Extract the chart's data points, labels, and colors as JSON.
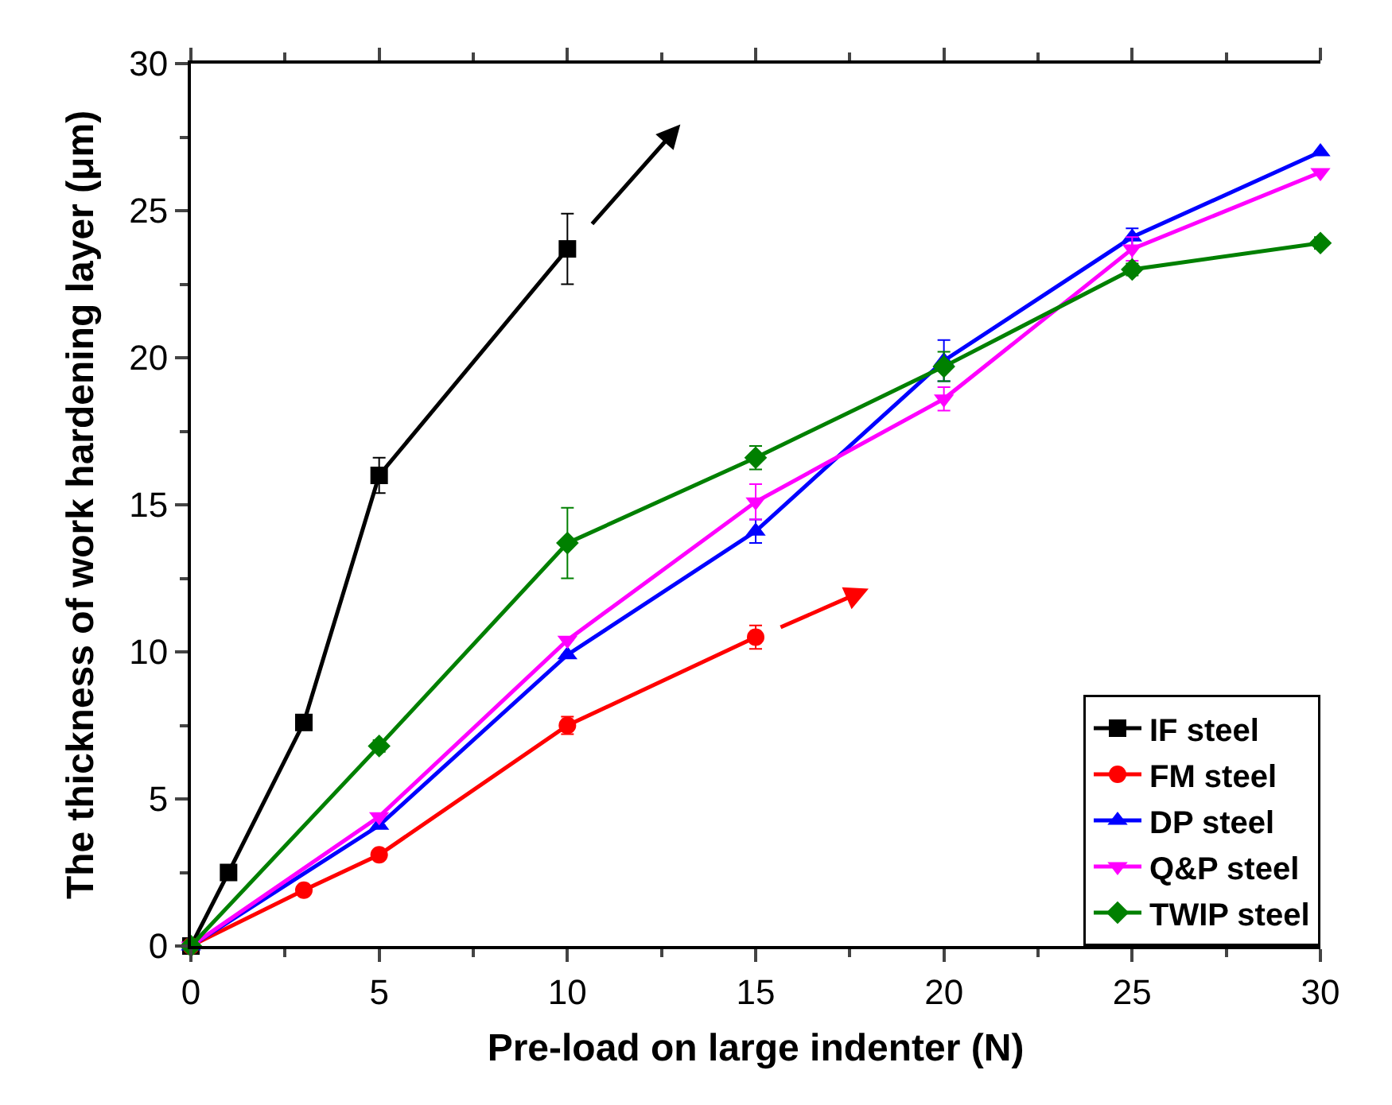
{
  "chart_data": {
    "type": "line",
    "xlabel": "Pre-load on large indenter (N)",
    "ylabel": "The thickness of work hardening layer (μm)",
    "xlim": [
      0,
      30
    ],
    "xticks": [
      0,
      5,
      10,
      15,
      20,
      25,
      30
    ],
    "ylim": [
      0,
      30
    ],
    "yticks": [
      0,
      5,
      10,
      15,
      20,
      25,
      30
    ],
    "legend": "bottom right",
    "line_style": "solid",
    "series": [
      {
        "name": "IF steel",
        "color": "#000000",
        "marker": "square",
        "x": [
          0,
          1,
          3,
          5,
          10
        ],
        "values": [
          0,
          2.5,
          7.6,
          16.0,
          23.7
        ],
        "errors": [
          null,
          null,
          null,
          0.6,
          1.2
        ]
      },
      {
        "name": "FM steel",
        "color": "#ff0000",
        "marker": "circle",
        "x": [
          0,
          3,
          5,
          10,
          15
        ],
        "values": [
          0,
          1.9,
          3.1,
          7.5,
          10.5
        ],
        "errors": [
          null,
          null,
          null,
          0.3,
          0.4
        ]
      },
      {
        "name": "DP steel",
        "color": "#0000ff",
        "marker": "triangle",
        "x": [
          0,
          5,
          10,
          15,
          20,
          25,
          30
        ],
        "values": [
          0,
          4.1,
          9.9,
          14.1,
          19.9,
          24.1,
          27.0
        ],
        "errors": [
          null,
          null,
          null,
          0.4,
          0.7,
          0.3,
          null
        ]
      },
      {
        "name": "Q&P steel",
        "color": "#ff00ff",
        "marker": "triangle-down",
        "x": [
          0,
          5,
          10,
          15,
          20,
          25,
          30
        ],
        "values": [
          0,
          4.4,
          10.4,
          15.1,
          18.6,
          23.7,
          26.3
        ],
        "errors": [
          null,
          null,
          null,
          0.6,
          0.4,
          0.4,
          null
        ]
      },
      {
        "name": "TWIP steel",
        "color": "#008000",
        "marker": "diamond",
        "x": [
          0,
          5,
          10,
          15,
          20,
          25,
          30
        ],
        "values": [
          0,
          6.8,
          13.7,
          16.6,
          19.7,
          23.0,
          23.9
        ],
        "errors": [
          null,
          0.2,
          1.2,
          0.4,
          0.5,
          0.2,
          0.2
        ]
      }
    ]
  }
}
